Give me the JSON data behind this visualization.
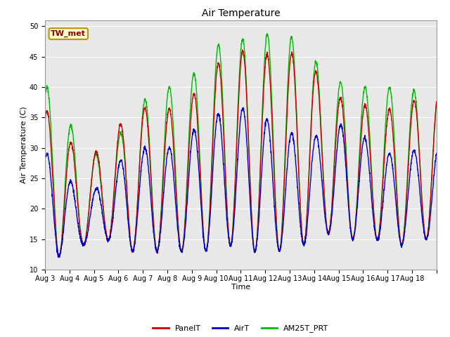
{
  "title": "Air Temperature",
  "xlabel": "Time",
  "ylabel": "Air Temperature (C)",
  "ylim": [
    10,
    51
  ],
  "yticks": [
    10,
    15,
    20,
    25,
    30,
    35,
    40,
    45,
    50
  ],
  "background_color": "#ffffff",
  "plot_bg_color": "#e8e8e8",
  "annotation_text": "TW_met",
  "annotation_color": "#8b0000",
  "annotation_bg": "#ffffcc",
  "annotation_border": "#b8960c",
  "series": {
    "PanelT": {
      "color": "#cc0000",
      "lw": 1.0
    },
    "AirT": {
      "color": "#0000cc",
      "lw": 1.0
    },
    "AM25T_PRT": {
      "color": "#00bb00",
      "lw": 1.0
    }
  },
  "x_tick_labels": [
    "Aug 3",
    "Aug 4",
    "Aug 5",
    "Aug 6",
    "Aug 7",
    "Aug 8",
    "Aug 9",
    "Aug 10",
    "Aug 11",
    "Aug 12",
    "Aug 13",
    "Aug 14",
    "Aug 15",
    "Aug 16",
    "Aug 17",
    "Aug 18"
  ],
  "n_days": 16,
  "pts_per_day": 144,
  "figsize": [
    6.4,
    4.8
  ],
  "dpi": 100,
  "grid_color": "#ffffff",
  "grid_lw": 0.8,
  "title_fontsize": 10,
  "label_fontsize": 8,
  "tick_fontsize": 7,
  "legend_fontsize": 8
}
